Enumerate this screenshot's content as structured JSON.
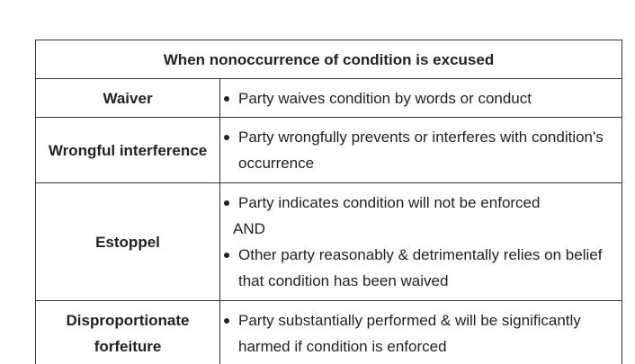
{
  "table": {
    "title": "When nonoccurrence of condition is excused",
    "rows": [
      {
        "term": "Waiver",
        "bullets": [
          "Party waives condition by words or conduct"
        ]
      },
      {
        "term": "Wrongful interference",
        "bullets": [
          "Party wrongfully prevents or interferes with condition's occurrence"
        ]
      },
      {
        "term": "Estoppel",
        "bullets": [
          "Party indicates condition will not be enforced",
          "Other party reasonably & detrimentally relies on belief that condition has been waived"
        ],
        "connector": "AND"
      },
      {
        "term": "Disproportionate forfeiture",
        "bullets": [
          "Party substantially performed & will be significantly harmed if condition is enforced"
        ]
      }
    ]
  },
  "icons": {
    "bullet": "bullet-dot-icon"
  }
}
